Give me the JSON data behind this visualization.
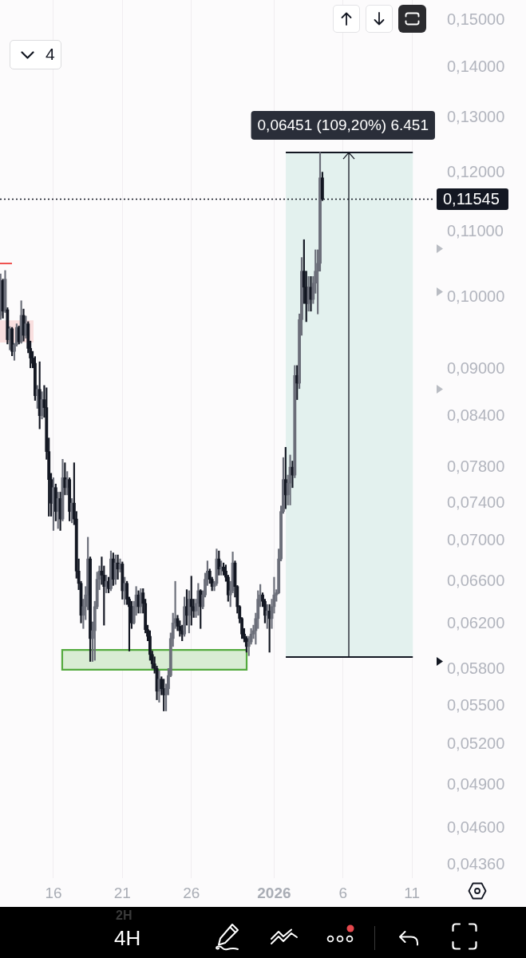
{
  "chart_data": {
    "type": "candlestick",
    "color": "#131722",
    "x": [
      "2025-12-12T04:00",
      "2025-12-12T08:00",
      "2025-12-12T12:00",
      "2025-12-12T16:00",
      "2025-12-12T20:00",
      "2025-12-13T00:00",
      "2025-12-13T04:00",
      "2025-12-13T08:00",
      "2025-12-13T12:00",
      "2025-12-13T16:00",
      "2025-12-13T20:00",
      "2025-12-14T00:00",
      "2025-12-14T04:00",
      "2025-12-14T08:00",
      "2025-12-14T12:00",
      "2025-12-14T16:00",
      "2025-12-14T20:00",
      "2025-12-15T00:00",
      "2025-12-15T04:00",
      "2025-12-15T08:00",
      "2025-12-15T12:00",
      "2025-12-15T16:00",
      "2025-12-15T20:00",
      "2025-12-16T00:00",
      "2025-12-16T04:00",
      "2025-12-16T08:00",
      "2025-12-16T12:00",
      "2025-12-16T16:00",
      "2025-12-16T20:00",
      "2025-12-17T00:00",
      "2025-12-17T04:00",
      "2025-12-17T08:00",
      "2025-12-17T12:00",
      "2025-12-17T16:00",
      "2025-12-17T20:00",
      "2025-12-18T00:00",
      "2025-12-18T04:00",
      "2025-12-18T08:00",
      "2025-12-18T12:00",
      "2025-12-18T16:00",
      "2025-12-18T20:00",
      "2025-12-19T00:00",
      "2025-12-19T04:00",
      "2025-12-19T08:00",
      "2025-12-19T12:00",
      "2025-12-19T16:00",
      "2025-12-19T20:00",
      "2025-12-20T00:00",
      "2025-12-20T04:00",
      "2025-12-20T08:00",
      "2025-12-20T12:00",
      "2025-12-20T16:00",
      "2025-12-20T20:00",
      "2025-12-21T00:00",
      "2025-12-21T04:00",
      "2025-12-21T08:00",
      "2025-12-21T12:00",
      "2025-12-21T16:00",
      "2025-12-21T20:00",
      "2025-12-22T00:00",
      "2025-12-22T04:00",
      "2025-12-22T08:00",
      "2025-12-22T12:00",
      "2025-12-22T16:00",
      "2025-12-22T20:00",
      "2025-12-23T00:00",
      "2025-12-23T04:00",
      "2025-12-23T08:00",
      "2025-12-23T12:00",
      "2025-12-23T16:00",
      "2025-12-23T20:00",
      "2025-12-24T00:00",
      "2025-12-24T04:00",
      "2025-12-24T08:00",
      "2025-12-24T12:00",
      "2025-12-24T16:00",
      "2025-12-24T20:00",
      "2025-12-25T00:00",
      "2025-12-25T04:00",
      "2025-12-25T08:00",
      "2025-12-25T12:00",
      "2025-12-25T16:00",
      "2025-12-25T20:00",
      "2025-12-26T00:00",
      "2025-12-26T04:00",
      "2025-12-26T08:00",
      "2025-12-26T12:00",
      "2025-12-26T16:00",
      "2025-12-26T20:00",
      "2025-12-27T00:00",
      "2025-12-27T04:00",
      "2025-12-27T08:00",
      "2025-12-27T12:00",
      "2025-12-27T16:00",
      "2025-12-27T20:00",
      "2025-12-28T00:00",
      "2025-12-28T04:00",
      "2025-12-28T08:00",
      "2025-12-28T12:00",
      "2025-12-28T16:00",
      "2025-12-28T20:00",
      "2025-12-29T00:00",
      "2025-12-29T04:00",
      "2025-12-29T08:00",
      "2025-12-29T12:00",
      "2025-12-29T16:00",
      "2025-12-29T20:00",
      "2025-12-30T00:00",
      "2025-12-30T04:00",
      "2025-12-30T08:00",
      "2025-12-30T12:00",
      "2025-12-30T16:00",
      "2025-12-30T20:00",
      "2025-12-31T00:00",
      "2025-12-31T04:00",
      "2025-12-31T08:00",
      "2025-12-31T12:00",
      "2025-12-31T16:00",
      "2025-12-31T20:00",
      "2026-01-01T00:00",
      "2026-01-01T04:00",
      "2026-01-01T08:00",
      "2026-01-01T12:00",
      "2026-01-01T16:00",
      "2026-01-01T20:00",
      "2026-01-02T00:00",
      "2026-01-02T04:00",
      "2026-01-02T08:00",
      "2026-01-02T12:00",
      "2026-01-02T16:00",
      "2026-01-02T20:00",
      "2026-01-03T00:00",
      "2026-01-03T04:00",
      "2026-01-03T08:00",
      "2026-01-03T12:00",
      "2026-01-03T16:00",
      "2026-01-03T20:00",
      "2026-01-04T00:00",
      "2026-01-04T04:00",
      "2026-01-04T08:00",
      "2026-01-04T12:00"
    ],
    "ohlc": [
      [
        0.0974,
        0.1035,
        0.0968,
        0.1025
      ],
      [
        0.1025,
        0.1027,
        0.097,
        0.098
      ],
      [
        0.098,
        0.104,
        0.0978,
        0.1027
      ],
      [
        0.0982,
        0.0985,
        0.0934,
        0.094
      ],
      [
        0.094,
        0.0958,
        0.0926,
        0.0955
      ],
      [
        0.0955,
        0.0957,
        0.0918,
        0.0924
      ],
      [
        0.0924,
        0.0935,
        0.0912,
        0.0933
      ],
      [
        0.0933,
        0.0962,
        0.0931,
        0.0957
      ],
      [
        0.0957,
        0.0959,
        0.0934,
        0.0937
      ],
      [
        0.0937,
        0.0995,
        0.0935,
        0.0974
      ],
      [
        0.0974,
        0.0983,
        0.0938,
        0.0946
      ],
      [
        0.0946,
        0.0973,
        0.0942,
        0.0962
      ],
      [
        0.0962,
        0.0965,
        0.0922,
        0.0928
      ],
      [
        0.0928,
        0.0938,
        0.0902,
        0.0915
      ],
      [
        0.0915,
        0.0924,
        0.0902,
        0.0908
      ],
      [
        0.0908,
        0.0917,
        0.086,
        0.0866
      ],
      [
        0.0866,
        0.0879,
        0.085,
        0.0874
      ],
      [
        0.0874,
        0.091,
        0.0825,
        0.0841
      ],
      [
        0.0841,
        0.0871,
        0.0837,
        0.0861
      ],
      [
        0.0861,
        0.0879,
        0.0839,
        0.0851
      ],
      [
        0.0851,
        0.0876,
        0.0789,
        0.0798
      ],
      [
        0.0798,
        0.0814,
        0.0726,
        0.0766
      ],
      [
        0.0766,
        0.0773,
        0.0726,
        0.074
      ],
      [
        0.074,
        0.0768,
        0.0711,
        0.0757
      ],
      [
        0.0757,
        0.0761,
        0.0721,
        0.0731
      ],
      [
        0.0731,
        0.0752,
        0.0713,
        0.0745
      ],
      [
        0.0745,
        0.0752,
        0.0711,
        0.0723
      ],
      [
        0.0723,
        0.0789,
        0.0721,
        0.0768
      ],
      [
        0.0768,
        0.0785,
        0.0749,
        0.0757
      ],
      [
        0.0757,
        0.0775,
        0.0749,
        0.0766
      ],
      [
        0.0766,
        0.0768,
        0.0721,
        0.0731
      ],
      [
        0.0731,
        0.0745,
        0.0719,
        0.074
      ],
      [
        0.074,
        0.0785,
        0.0717,
        0.0723
      ],
      [
        0.0723,
        0.0731,
        0.0663,
        0.067
      ],
      [
        0.067,
        0.0682,
        0.0652,
        0.0658
      ],
      [
        0.0658,
        0.066,
        0.0621,
        0.0628
      ],
      [
        0.0628,
        0.0643,
        0.0616,
        0.0636
      ],
      [
        0.0636,
        0.0655,
        0.0624,
        0.0647
      ],
      [
        0.0647,
        0.0704,
        0.0633,
        0.0682
      ],
      [
        0.0682,
        0.0684,
        0.0587,
        0.0607
      ],
      [
        0.0607,
        0.0622,
        0.0587,
        0.0614
      ],
      [
        0.0614,
        0.0641,
        0.0588,
        0.0636
      ],
      [
        0.0636,
        0.0669,
        0.0634,
        0.0662
      ],
      [
        0.0662,
        0.0675,
        0.0652,
        0.067
      ],
      [
        0.067,
        0.0684,
        0.0657,
        0.0666
      ],
      [
        0.0666,
        0.0675,
        0.0619,
        0.0655
      ],
      [
        0.0655,
        0.0666,
        0.0649,
        0.066
      ],
      [
        0.066,
        0.0664,
        0.0649,
        0.0653
      ],
      [
        0.0653,
        0.069,
        0.0651,
        0.0682
      ],
      [
        0.0682,
        0.0688,
        0.0656,
        0.0662
      ],
      [
        0.0662,
        0.0686,
        0.0657,
        0.0678
      ],
      [
        0.0678,
        0.0686,
        0.0662,
        0.0672
      ],
      [
        0.0672,
        0.0682,
        0.0669,
        0.0677
      ],
      [
        0.0677,
        0.0679,
        0.0643,
        0.0651
      ],
      [
        0.0651,
        0.0664,
        0.0638,
        0.0658
      ],
      [
        0.0658,
        0.066,
        0.0638,
        0.0643
      ],
      [
        0.0643,
        0.0645,
        0.0596,
        0.0636
      ],
      [
        0.0636,
        0.0641,
        0.0616,
        0.0621
      ],
      [
        0.0621,
        0.0641,
        0.062,
        0.0636
      ],
      [
        0.0636,
        0.0655,
        0.0628,
        0.0647
      ],
      [
        0.0647,
        0.0651,
        0.063,
        0.0636
      ],
      [
        0.0636,
        0.0653,
        0.063,
        0.0649
      ],
      [
        0.0649,
        0.0653,
        0.063,
        0.0639
      ],
      [
        0.0639,
        0.0643,
        0.0612,
        0.0615
      ],
      [
        0.0615,
        0.0619,
        0.0605,
        0.0609
      ],
      [
        0.0609,
        0.0614,
        0.0588,
        0.0593
      ],
      [
        0.0593,
        0.0596,
        0.0581,
        0.0585
      ],
      [
        0.0585,
        0.0591,
        0.0577,
        0.0581
      ],
      [
        0.0581,
        0.0583,
        0.0555,
        0.0562
      ],
      [
        0.0562,
        0.0579,
        0.0553,
        0.0572
      ],
      [
        0.0572,
        0.0574,
        0.0559,
        0.0564
      ],
      [
        0.0564,
        0.0572,
        0.0546,
        0.0559
      ],
      [
        0.0559,
        0.0568,
        0.0546,
        0.0564
      ],
      [
        0.0564,
        0.0581,
        0.0559,
        0.0575
      ],
      [
        0.0575,
        0.0612,
        0.0574,
        0.0607
      ],
      [
        0.0607,
        0.063,
        0.06,
        0.0621
      ],
      [
        0.0621,
        0.066,
        0.0616,
        0.0625
      ],
      [
        0.0625,
        0.0628,
        0.0614,
        0.0618
      ],
      [
        0.0618,
        0.0623,
        0.0609,
        0.0614
      ],
      [
        0.0614,
        0.0619,
        0.0605,
        0.0611
      ],
      [
        0.0611,
        0.0645,
        0.0609,
        0.0636
      ],
      [
        0.0636,
        0.0652,
        0.0619,
        0.0628
      ],
      [
        0.0628,
        0.0651,
        0.0612,
        0.0643
      ],
      [
        0.0643,
        0.0665,
        0.0619,
        0.0636
      ],
      [
        0.0636,
        0.0643,
        0.0626,
        0.0632
      ],
      [
        0.0632,
        0.0643,
        0.0626,
        0.0639
      ],
      [
        0.0639,
        0.0658,
        0.0628,
        0.0651
      ],
      [
        0.0651,
        0.0652,
        0.0616,
        0.0636
      ],
      [
        0.0636,
        0.0651,
        0.0634,
        0.0647
      ],
      [
        0.0647,
        0.0668,
        0.0645,
        0.0662
      ],
      [
        0.0662,
        0.068,
        0.0656,
        0.067
      ],
      [
        0.067,
        0.0672,
        0.0658,
        0.0662
      ],
      [
        0.0662,
        0.0664,
        0.0651,
        0.0655
      ],
      [
        0.0655,
        0.066,
        0.0651,
        0.0658
      ],
      [
        0.0658,
        0.0692,
        0.0656,
        0.0682
      ],
      [
        0.0682,
        0.069,
        0.0666,
        0.0672
      ],
      [
        0.0672,
        0.068,
        0.0666,
        0.0674
      ],
      [
        0.0674,
        0.0678,
        0.0666,
        0.067
      ],
      [
        0.067,
        0.0676,
        0.066,
        0.0664
      ],
      [
        0.0664,
        0.0666,
        0.0641,
        0.0647
      ],
      [
        0.0647,
        0.066,
        0.0636,
        0.0651
      ],
      [
        0.0651,
        0.0689,
        0.0649,
        0.0678
      ],
      [
        0.0678,
        0.068,
        0.0645,
        0.0655
      ],
      [
        0.0655,
        0.0656,
        0.063,
        0.0636
      ],
      [
        0.0636,
        0.0637,
        0.0621,
        0.0625
      ],
      [
        0.0625,
        0.0626,
        0.0607,
        0.0611
      ],
      [
        0.0611,
        0.0616,
        0.0604,
        0.0607
      ],
      [
        0.0607,
        0.0609,
        0.0595,
        0.06
      ],
      [
        0.06,
        0.0609,
        0.0592,
        0.0604
      ],
      [
        0.0604,
        0.0616,
        0.0602,
        0.0611
      ],
      [
        0.0611,
        0.0619,
        0.0607,
        0.0614
      ],
      [
        0.0614,
        0.063,
        0.0602,
        0.0625
      ],
      [
        0.0625,
        0.0651,
        0.0616,
        0.0643
      ],
      [
        0.0643,
        0.0657,
        0.0636,
        0.0647
      ],
      [
        0.0647,
        0.0649,
        0.0636,
        0.0641
      ],
      [
        0.0641,
        0.0643,
        0.0621,
        0.0628
      ],
      [
        0.0628,
        0.0638,
        0.0616,
        0.0632
      ],
      [
        0.0632,
        0.0638,
        0.0595,
        0.0625
      ],
      [
        0.0625,
        0.0643,
        0.0616,
        0.0636
      ],
      [
        0.0636,
        0.0664,
        0.063,
        0.0647
      ],
      [
        0.0647,
        0.0652,
        0.0641,
        0.0649
      ],
      [
        0.0649,
        0.0692,
        0.0648,
        0.0682
      ],
      [
        0.0682,
        0.0737,
        0.068,
        0.0731
      ],
      [
        0.0731,
        0.0791,
        0.0729,
        0.0766
      ],
      [
        0.0766,
        0.0803,
        0.0734,
        0.0749
      ],
      [
        0.0749,
        0.0771,
        0.0738,
        0.0762
      ],
      [
        0.0762,
        0.0794,
        0.0738,
        0.078
      ],
      [
        0.078,
        0.0787,
        0.0757,
        0.0771
      ],
      [
        0.0771,
        0.0905,
        0.0768,
        0.0892
      ],
      [
        0.0892,
        0.0905,
        0.0861,
        0.0882
      ],
      [
        0.0882,
        0.0976,
        0.0875,
        0.0968
      ],
      [
        0.0968,
        0.106,
        0.0946,
        0.1039
      ],
      [
        0.1039,
        0.1088,
        0.0991,
        0.1015
      ],
      [
        0.1015,
        0.1039,
        0.0965,
        0.0991
      ],
      [
        0.0991,
        0.1031,
        0.098,
        0.1015
      ],
      [
        0.1015,
        0.1031,
        0.098,
        0.0997
      ],
      [
        0.0997,
        0.1031,
        0.0991,
        0.1021
      ],
      [
        0.1021,
        0.1072,
        0.1006,
        0.1039
      ],
      [
        0.1039,
        0.1072,
        0.0976,
        0.1051
      ],
      [
        0.1051,
        0.1236,
        0.1039,
        0.1191
      ],
      [
        0.1191,
        0.1201,
        0.1152,
        0.11545
      ]
    ],
    "colors": [
      "#6b6e79",
      "#131722",
      "#6b6e79",
      "#131722",
      "#6b6e79",
      "#131722",
      "#6b6e79",
      "#6b6e79",
      "#131722",
      "#6b6e79",
      "#131722",
      "#6b6e79",
      "#131722",
      "#131722",
      "#131722",
      "#131722",
      "#6b6e79",
      "#131722",
      "#6b6e79",
      "#131722",
      "#131722",
      "#131722",
      "#131722",
      "#6b6e79",
      "#131722",
      "#6b6e79",
      "#131722",
      "#6b6e79",
      "#131722",
      "#6b6e79",
      "#131722",
      "#6b6e79",
      "#131722",
      "#131722",
      "#131722",
      "#131722",
      "#6b6e79",
      "#6b6e79",
      "#6b6e79",
      "#131722",
      "#6b6e79",
      "#6b6e79",
      "#6b6e79",
      "#6b6e79",
      "#131722",
      "#131722",
      "#6b6e79",
      "#131722",
      "#6b6e79",
      "#131722",
      "#6b6e79",
      "#131722",
      "#6b6e79",
      "#131722",
      "#6b6e79",
      "#131722",
      "#131722",
      "#131722",
      "#6b6e79",
      "#6b6e79",
      "#131722",
      "#6b6e79",
      "#131722",
      "#131722",
      "#131722",
      "#131722",
      "#131722",
      "#131722",
      "#131722",
      "#6b6e79",
      "#131722",
      "#131722",
      "#6b6e79",
      "#6b6e79",
      "#6b6e79",
      "#6b6e79",
      "#6b6e79",
      "#131722",
      "#131722",
      "#131722",
      "#6b6e79",
      "#131722",
      "#6b6e79",
      "#131722",
      "#131722",
      "#6b6e79",
      "#6b6e79",
      "#131722",
      "#6b6e79",
      "#6b6e79",
      "#6b6e79",
      "#131722",
      "#131722",
      "#6b6e79",
      "#6b6e79",
      "#131722",
      "#6b6e79",
      "#131722",
      "#131722",
      "#131722",
      "#6b6e79",
      "#6b6e79",
      "#131722",
      "#131722",
      "#131722",
      "#131722",
      "#131722",
      "#131722",
      "#6b6e79",
      "#6b6e79",
      "#6b6e79",
      "#6b6e79",
      "#6b6e79",
      "#6b6e79",
      "#131722",
      "#131722",
      "#6b6e79",
      "#131722",
      "#6b6e79",
      "#6b6e79",
      "#6b6e79",
      "#6b6e79",
      "#6b6e79",
      "#6b6e79",
      "#131722",
      "#6b6e79",
      "#6b6e79",
      "#131722",
      "#6b6e79",
      "#131722",
      "#6b6e79",
      "#6b6e79",
      "#131722",
      "#131722",
      "#6b6e79",
      "#131722",
      "#6b6e79",
      "#6b6e79",
      "#6b6e79",
      "#6b6e79",
      "#131722"
    ],
    "xlim": [
      "2025-12-12T03:00",
      "2026-01-12T16:00"
    ],
    "xticks": [
      {
        "value": "2025-12-16",
        "label": "16"
      },
      {
        "value": "2025-12-21",
        "label": "21"
      },
      {
        "value": "2025-12-26",
        "label": "26"
      },
      {
        "value": "2026-01-01",
        "label": "2026"
      },
      {
        "value": "2026-01-06",
        "label": "6"
      },
      {
        "value": "2026-01-11",
        "label": "11"
      }
    ],
    "ylim": [
      0.04275,
      0.1545
    ],
    "log": true,
    "yticks": [
      {
        "value": 0.15,
        "label": "0,15000"
      },
      {
        "value": 0.14,
        "label": "0,14000"
      },
      {
        "value": 0.13,
        "label": "0,13000"
      },
      {
        "value": 0.12,
        "label": "0,12000"
      },
      {
        "value": 0.11,
        "label": "0,11000"
      },
      {
        "value": 0.1,
        "label": "0,10000"
      },
      {
        "value": 0.09,
        "label": "0,09000"
      },
      {
        "value": 0.084,
        "label": "0,08400"
      },
      {
        "value": 0.078,
        "label": "0,07800"
      },
      {
        "value": 0.074,
        "label": "0,07400"
      },
      {
        "value": 0.07,
        "label": "0,07000"
      },
      {
        "value": 0.066,
        "label": "0,06600"
      },
      {
        "value": 0.062,
        "label": "0,06200"
      },
      {
        "value": 0.058,
        "label": "0,05800"
      },
      {
        "value": 0.055,
        "label": "0,05500"
      },
      {
        "value": 0.052,
        "label": "0,05200"
      },
      {
        "value": 0.049,
        "label": "0,04900"
      },
      {
        "value": 0.046,
        "label": "0,04600"
      },
      {
        "value": 0.0436,
        "label": "0,04360"
      }
    ],
    "grid": "x",
    "ref_lines": [
      {
        "axis": "y",
        "value": 0.11545,
        "label": "0,11545",
        "color": "#131722",
        "line_style": "dotted"
      },
      {
        "axis": "y",
        "value": 0.05908,
        "color": "#131722"
      },
      {
        "axis": "y",
        "value": 0.12359,
        "color": "#131722"
      }
    ],
    "bands": [
      {
        "axis": "y",
        "from": 0.05908,
        "to": 0.12359,
        "color": "#e3f1ee"
      },
      {
        "axis": "y",
        "from": 0.058,
        "to": 0.0597,
        "color": "#d9ecd4"
      },
      {
        "axis": "y",
        "from": 0.0936,
        "to": 0.0967,
        "color": "#f9dfdf"
      }
    ],
    "annotations": [
      {
        "text": "0,06451 (109,20%) 6.451",
        "x": "2026-01-06T10:00",
        "y": 0.12359
      },
      "4",
      "4H",
      "2H"
    ]
  }
}
